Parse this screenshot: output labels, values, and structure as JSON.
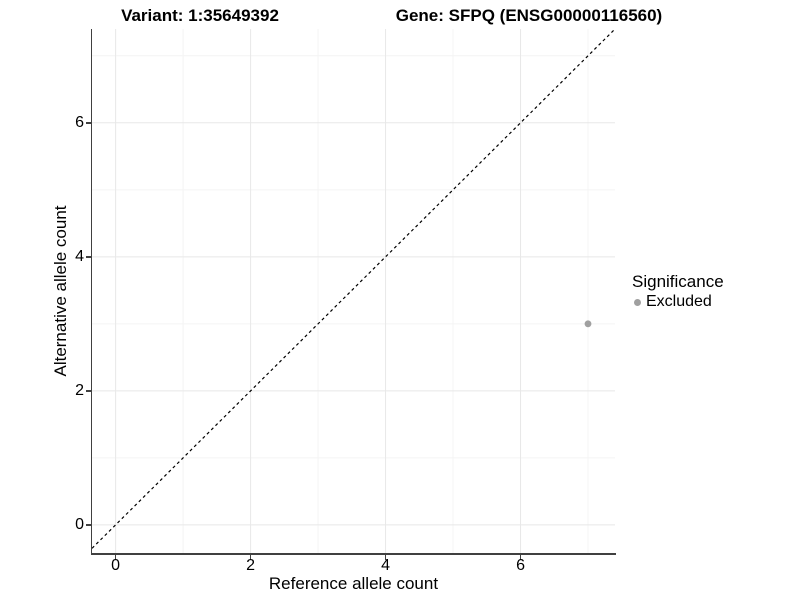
{
  "chart_data": {
    "type": "scatter",
    "titles": {
      "left": "Variant: 1:35649392",
      "right": "Gene: SFPQ (ENSG00000116560)"
    },
    "xlabel": "Reference allele count",
    "ylabel": "Alternative allele count",
    "x_ticks": [
      0,
      2,
      4,
      6
    ],
    "y_ticks": [
      0,
      2,
      4,
      6
    ],
    "x_minor_ticks": [
      1,
      3,
      5,
      7
    ],
    "y_minor_ticks": [
      1,
      3,
      5,
      7
    ],
    "xlim": [
      -0.35,
      7.4
    ],
    "ylim": [
      -0.42,
      7.4
    ],
    "grid": "major and minor gridlines, light gray, white background",
    "reference_line": {
      "slope": 1,
      "intercept": 0,
      "style": "dashed",
      "color": "#000000"
    },
    "series": [
      {
        "name": "Excluded",
        "color": "#a0a0a0",
        "points": [
          [
            7,
            3
          ]
        ]
      }
    ],
    "legend": {
      "title": "Significance",
      "position": "right",
      "items": [
        {
          "label": "Excluded",
          "color": "#a0a0a0"
        }
      ]
    }
  },
  "colors": {
    "background": "#ffffff",
    "axis_line": "#404040",
    "tick_text": "#000000",
    "grid_major": "#e8e8e8",
    "grid_minor": "#f4f4f4",
    "point": "#a0a0a0",
    "reference_line": "#000000"
  }
}
